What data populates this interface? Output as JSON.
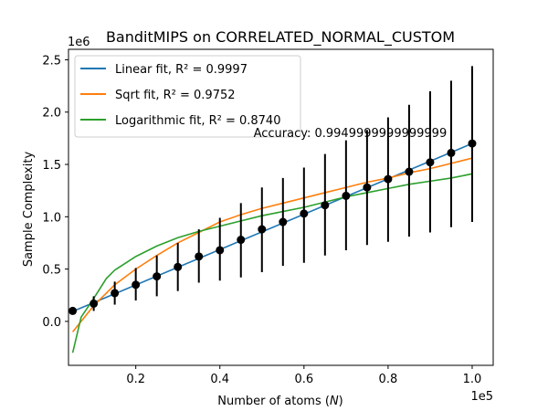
{
  "chart_data": {
    "type": "line",
    "title": "BanditMIPS on CORRELATED_NORMAL_CUSTOM",
    "xlabel": "Number of atoms (N)",
    "ylabel": "Sample Complexity",
    "x_multiplier": "1e5",
    "y_multiplier": "1e6",
    "xlim": [
      0.04,
      1.05
    ],
    "ylim": [
      -0.42,
      2.6
    ],
    "x_ticks": [
      "0.2",
      "0.4",
      "0.6",
      "0.8",
      "1.0"
    ],
    "x_tick_values": [
      0.2,
      0.4,
      0.6,
      0.8,
      1.0
    ],
    "y_ticks": [
      "0.0",
      "0.5",
      "1.0",
      "1.5",
      "2.0",
      "2.5"
    ],
    "y_tick_values": [
      0.0,
      0.5,
      1.0,
      1.5,
      2.0,
      2.5
    ],
    "legend_position": "top-left",
    "grid": false,
    "annotation": "Accuracy: 0.9949999999999999",
    "measurements": {
      "x": [
        0.05,
        0.1,
        0.15,
        0.2,
        0.25,
        0.3,
        0.35,
        0.4,
        0.45,
        0.5,
        0.55,
        0.6,
        0.65,
        0.7,
        0.75,
        0.8,
        0.85,
        0.9,
        0.95,
        1.0
      ],
      "y": [
        0.1,
        0.17,
        0.27,
        0.35,
        0.43,
        0.52,
        0.62,
        0.68,
        0.78,
        0.88,
        0.95,
        1.03,
        1.11,
        1.2,
        1.28,
        1.36,
        1.43,
        1.52,
        1.61,
        1.7
      ],
      "err_low": [
        0.1,
        0.1,
        0.16,
        0.2,
        0.24,
        0.29,
        0.37,
        0.39,
        0.42,
        0.47,
        0.53,
        0.56,
        0.63,
        0.68,
        0.73,
        0.76,
        0.81,
        0.85,
        0.9,
        0.95
      ],
      "err_high": [
        0.1,
        0.24,
        0.38,
        0.51,
        0.63,
        0.75,
        0.88,
        0.99,
        1.13,
        1.28,
        1.37,
        1.47,
        1.6,
        1.73,
        1.83,
        1.95,
        2.07,
        2.2,
        2.3,
        2.44
      ],
      "color": "#000000"
    },
    "series": [
      {
        "name": "Linear fit,  R² = 0.9997",
        "color": "#1f77b4",
        "x": [
          0.05,
          1.0
        ],
        "y": [
          0.095,
          1.7
        ]
      },
      {
        "name": "Sqrt fit,  R² = 0.9752",
        "color": "#ff7f0e",
        "x": [
          0.05,
          0.1,
          0.15,
          0.2,
          0.25,
          0.3,
          0.35,
          0.4,
          0.45,
          0.5,
          0.55,
          0.6,
          0.65,
          0.7,
          0.75,
          0.8,
          0.85,
          0.9,
          0.95,
          1.0
        ],
        "y": [
          -0.1,
          0.15,
          0.35,
          0.5,
          0.63,
          0.75,
          0.85,
          0.95,
          1.02,
          1.08,
          1.13,
          1.18,
          1.23,
          1.28,
          1.33,
          1.37,
          1.42,
          1.46,
          1.51,
          1.56
        ]
      },
      {
        "name": "Logarithmic fit,  R² = 0.8740",
        "color": "#2ca02c",
        "x": [
          0.05,
          0.07,
          0.1,
          0.13,
          0.15,
          0.2,
          0.25,
          0.3,
          0.35,
          0.4,
          0.45,
          0.5,
          0.55,
          0.6,
          0.65,
          0.7,
          0.75,
          0.8,
          0.85,
          0.9,
          0.95,
          1.0
        ],
        "y": [
          -0.3,
          0.04,
          0.22,
          0.41,
          0.49,
          0.62,
          0.72,
          0.8,
          0.86,
          0.91,
          0.96,
          1.01,
          1.05,
          1.09,
          1.14,
          1.19,
          1.23,
          1.27,
          1.31,
          1.34,
          1.37,
          1.41
        ]
      }
    ]
  }
}
